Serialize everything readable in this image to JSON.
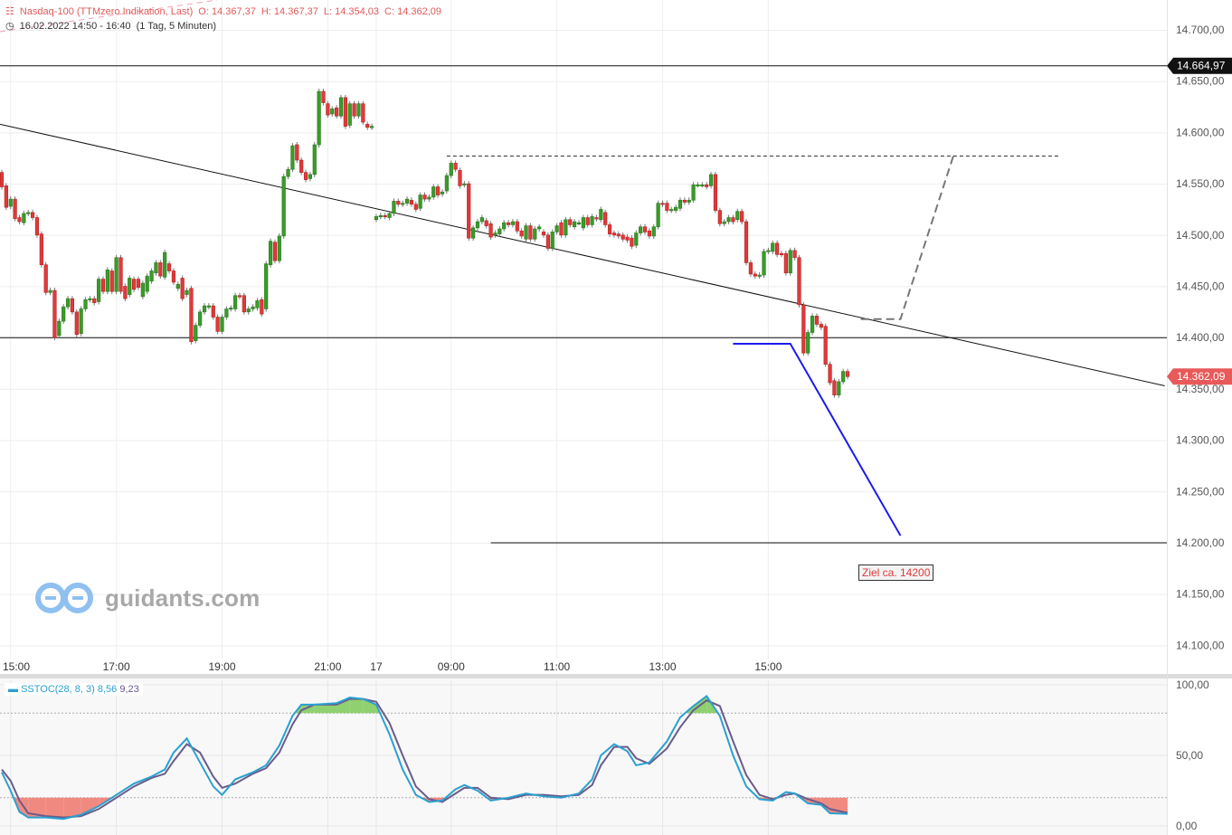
{
  "header": {
    "instrument": "Nasdaq-100 (TTMzero Indikation, Last)",
    "open": "O: 14.367,37",
    "high": "H: 14.367,37",
    "low": "L: 14.354,03",
    "close": "C: 14.362,09",
    "range": "16.02.2022 14:50 - 16:40",
    "interval": "(1 Tag, 5 Minuten)",
    "icons": {
      "instrument": "candlestick-icon",
      "time": "clock-icon"
    }
  },
  "logo": {
    "text": "guidants.com"
  },
  "colors": {
    "up": "#3a9b2a",
    "up_border": "#2b7a1e",
    "down": "#e03a3a",
    "down_border": "#b42020",
    "stoch_k": "#2aa0d0",
    "stoch_d": "#6b5b8a",
    "overbought_fill": "#8fd070",
    "oversold_fill": "#f08a80",
    "blue_projection": "#1a1aee",
    "grey_projection": "#777777"
  },
  "chart_data": [
    {
      "type": "candlestick",
      "ylim": [
        14080,
        14730
      ],
      "y_ticks": [
        14700,
        14650,
        14600,
        14550,
        14500,
        14450,
        14400,
        14350,
        14300,
        14250,
        14200,
        14150,
        14100
      ],
      "y_tick_labels": [
        "14.700,00",
        "14.650,00",
        "14.600,00",
        "14.550,00",
        "14.500,00",
        "14.450,00",
        "14.400,00",
        "14.350,00",
        "14.300,00",
        "14.250,00",
        "14.200,00",
        "14.150,00",
        "14.100,00"
      ],
      "x_ticks": [
        {
          "bar": 2,
          "label": "15:00"
        },
        {
          "bar": 26,
          "label": "17:00"
        },
        {
          "bar": 50,
          "label": "19:00"
        },
        {
          "bar": 74,
          "label": "21:00"
        },
        {
          "bar": 85,
          "label": "17"
        },
        {
          "bar": 102,
          "label": "09:00"
        },
        {
          "bar": 126,
          "label": "11:00"
        },
        {
          "bar": 150,
          "label": "13:00"
        },
        {
          "bar": 174,
          "label": "15:00"
        }
      ],
      "grid": true,
      "price_markers": [
        {
          "value": 14664.97,
          "label": "14.664,97",
          "color": "#111111"
        },
        {
          "value": 14362.09,
          "label": "14.362,09",
          "color": "#e85a5a"
        }
      ],
      "candles_open_close": [
        [
          14561,
          14547
        ],
        [
          14548,
          14527
        ],
        [
          14528,
          14535
        ],
        [
          14535,
          14516
        ],
        [
          14517,
          14513
        ],
        [
          14512,
          14521
        ],
        [
          14521,
          14522
        ],
        [
          14522,
          14517
        ],
        [
          14517,
          14500
        ],
        [
          14501,
          14471
        ],
        [
          14471,
          14444
        ],
        [
          14444,
          14446
        ],
        [
          14446,
          14400
        ],
        [
          14402,
          14416
        ],
        [
          14416,
          14430
        ],
        [
          14430,
          14438
        ],
        [
          14438,
          14425
        ],
        [
          14425,
          14403
        ],
        [
          14404,
          14428
        ],
        [
          14428,
          14437
        ],
        [
          14437,
          14438
        ],
        [
          14438,
          14434
        ],
        [
          14435,
          14457
        ],
        [
          14457,
          14445
        ],
        [
          14445,
          14466
        ],
        [
          14465,
          14445
        ],
        [
          14445,
          14478
        ],
        [
          14478,
          14445
        ],
        [
          14450,
          14438
        ],
        [
          14442,
          14458
        ],
        [
          14457,
          14447
        ],
        [
          14457,
          14449
        ],
        [
          14440,
          14453
        ],
        [
          14445,
          14460
        ],
        [
          14455,
          14465
        ],
        [
          14463,
          14473
        ],
        [
          14473,
          14460
        ],
        [
          14459,
          14483
        ],
        [
          14472,
          14465
        ],
        [
          14465,
          14454
        ],
        [
          14448,
          14452
        ],
        [
          14458,
          14438
        ],
        [
          14442,
          14446
        ],
        [
          14448,
          14396
        ],
        [
          14397,
          14412
        ],
        [
          14412,
          14425
        ],
        [
          14425,
          14431
        ],
        [
          14430,
          14431
        ],
        [
          14431,
          14420
        ],
        [
          14420,
          14406
        ],
        [
          14406,
          14420
        ],
        [
          14420,
          14428
        ],
        [
          14428,
          14429
        ],
        [
          14428,
          14441
        ],
        [
          14441,
          14440
        ],
        [
          14441,
          14425
        ],
        [
          14425,
          14428
        ],
        [
          14428,
          14430
        ],
        [
          14429,
          14436
        ],
        [
          14437,
          14423
        ],
        [
          14428,
          14472
        ],
        [
          14471,
          14494
        ],
        [
          14493,
          14475
        ],
        [
          14475,
          14499
        ],
        [
          14499,
          14557
        ],
        [
          14557,
          14564
        ],
        [
          14564,
          14587
        ],
        [
          14588,
          14573
        ],
        [
          14573,
          14561
        ],
        [
          14561,
          14554
        ],
        [
          14555,
          14559
        ],
        [
          14559,
          14588
        ],
        [
          14588,
          14640
        ],
        [
          14640,
          14629
        ],
        [
          14628,
          14617
        ],
        [
          14618,
          14623
        ],
        [
          14624,
          14616
        ],
        [
          14616,
          14634
        ],
        [
          14634,
          14606
        ],
        [
          14607,
          14628
        ],
        [
          14628,
          14616
        ],
        [
          14616,
          14628
        ],
        [
          14628,
          14610
        ],
        [
          14608,
          14605
        ],
        [
          14605,
          14606
        ],
        [
          14515,
          14518
        ],
        [
          14518,
          14519
        ],
        [
          14519,
          14518
        ],
        [
          14517,
          14521
        ],
        [
          14521,
          14533
        ],
        [
          14533,
          14530
        ],
        [
          14530,
          14531
        ],
        [
          14531,
          14535
        ],
        [
          14534,
          14530
        ],
        [
          14530,
          14525
        ],
        [
          14526,
          14539
        ],
        [
          14539,
          14535
        ],
        [
          14535,
          14537
        ],
        [
          14537,
          14547
        ],
        [
          14547,
          14539
        ],
        [
          14540,
          14542
        ],
        [
          14543,
          14558
        ],
        [
          14558,
          14570
        ],
        [
          14570,
          14564
        ],
        [
          14563,
          14548
        ],
        [
          14549,
          14550
        ],
        [
          14550,
          14497
        ],
        [
          14497,
          14507
        ],
        [
          14507,
          14513
        ],
        [
          14513,
          14517
        ],
        [
          14514,
          14509
        ],
        [
          14511,
          14498
        ],
        [
          14500,
          14502
        ],
        [
          14501,
          14506
        ],
        [
          14506,
          14512
        ],
        [
          14512,
          14510
        ],
        [
          14510,
          14513
        ],
        [
          14513,
          14504
        ],
        [
          14504,
          14499
        ],
        [
          14496,
          14509
        ],
        [
          14509,
          14496
        ],
        [
          14496,
          14506
        ],
        [
          14506,
          14508
        ],
        [
          14503,
          14500
        ],
        [
          14500,
          14487
        ],
        [
          14487,
          14503
        ],
        [
          14503,
          14509
        ],
        [
          14512,
          14500
        ],
        [
          14500,
          14515
        ],
        [
          14515,
          14510
        ],
        [
          14508,
          14513
        ],
        [
          14512,
          14512
        ],
        [
          14507,
          14517
        ],
        [
          14517,
          14510
        ],
        [
          14510,
          14518
        ],
        [
          14517,
          14516
        ],
        [
          14515,
          14525
        ],
        [
          14522,
          14510
        ],
        [
          14510,
          14501
        ],
        [
          14502,
          14500
        ],
        [
          14501,
          14499
        ],
        [
          14500,
          14496
        ],
        [
          14498,
          14495
        ],
        [
          14497,
          14489
        ],
        [
          14490,
          14502
        ],
        [
          14502,
          14508
        ],
        [
          14508,
          14503
        ],
        [
          14504,
          14499
        ],
        [
          14499,
          14508
        ],
        [
          14508,
          14531
        ],
        [
          14531,
          14530
        ],
        [
          14531,
          14524
        ],
        [
          14524,
          14525
        ],
        [
          14524,
          14527
        ],
        [
          14526,
          14534
        ],
        [
          14534,
          14532
        ],
        [
          14532,
          14534
        ],
        [
          14534,
          14549
        ],
        [
          14549,
          14549
        ],
        [
          14549,
          14549
        ],
        [
          14549,
          14547
        ],
        [
          14548,
          14559
        ],
        [
          14559,
          14524
        ],
        [
          14524,
          14511
        ],
        [
          14511,
          14513
        ],
        [
          14513,
          14517
        ],
        [
          14517,
          14513
        ],
        [
          14515,
          14523
        ],
        [
          14523,
          14513
        ],
        [
          14513,
          14473
        ],
        [
          14473,
          14462
        ],
        [
          14462,
          14460
        ],
        [
          14460,
          14461
        ],
        [
          14461,
          14484
        ],
        [
          14484,
          14485
        ],
        [
          14484,
          14492
        ],
        [
          14492,
          14481
        ],
        [
          14482,
          14481
        ],
        [
          14482,
          14463
        ],
        [
          14463,
          14485
        ],
        [
          14485,
          14478
        ],
        [
          14478,
          14432
        ],
        [
          14432,
          14385
        ],
        [
          14385,
          14405
        ],
        [
          14405,
          14421
        ],
        [
          14421,
          14413
        ],
        [
          14413,
          14410
        ],
        [
          14411,
          14374
        ],
        [
          14374,
          14356
        ],
        [
          14358,
          14344
        ],
        [
          14344,
          14357
        ],
        [
          14357,
          14367
        ],
        [
          14367,
          14362
        ]
      ],
      "drawings": {
        "horizontal_lines": [
          14664.97,
          14400
        ],
        "trendline": [
          [
            0,
            14608
          ],
          [
            264,
            14353
          ]
        ],
        "target_line": {
          "from_bar": 111,
          "value": 14200
        },
        "dashed_resistance": {
          "from_bar": 101,
          "to_bar": 240,
          "value": 14577
        },
        "grey_projection": [
          [
            195,
            14418
          ],
          [
            204,
            14418
          ],
          [
            216,
            14577
          ]
        ],
        "blue_projection": [
          [
            166,
            14394
          ],
          [
            179,
            14394
          ],
          [
            204,
            14207
          ]
        ],
        "target_label": {
          "text": "Ziel ca. 14200"
        }
      }
    },
    {
      "type": "line",
      "name": "SSTOC(28, 8, 3)",
      "last_k": "8,56",
      "last_d": "9,23",
      "ylim": [
        0,
        100
      ],
      "y_ticks": [
        100,
        50,
        0
      ],
      "y_tick_labels": [
        "100,00",
        "50,00",
        "0,00"
      ],
      "levels": [
        80,
        20
      ],
      "points_bar_k_d": [
        [
          0,
          38,
          40
        ],
        [
          2,
          25,
          32
        ],
        [
          4,
          10,
          18
        ],
        [
          6,
          6,
          9
        ],
        [
          10,
          6,
          7
        ],
        [
          14,
          5,
          6
        ],
        [
          18,
          8,
          7
        ],
        [
          22,
          14,
          12
        ],
        [
          26,
          22,
          20
        ],
        [
          30,
          30,
          28
        ],
        [
          34,
          35,
          34
        ],
        [
          37,
          40,
          37
        ],
        [
          39,
          52,
          46
        ],
        [
          42,
          62,
          58
        ],
        [
          45,
          45,
          52
        ],
        [
          48,
          28,
          35
        ],
        [
          50,
          22,
          27
        ],
        [
          53,
          33,
          30
        ],
        [
          57,
          38,
          37
        ],
        [
          60,
          43,
          41
        ],
        [
          63,
          57,
          52
        ],
        [
          66,
          78,
          72
        ],
        [
          68,
          86,
          82
        ],
        [
          71,
          86,
          86
        ],
        [
          76,
          87,
          86
        ],
        [
          79,
          91,
          90
        ],
        [
          82,
          90,
          90
        ],
        [
          85,
          86,
          88
        ],
        [
          88,
          65,
          73
        ],
        [
          91,
          40,
          50
        ],
        [
          94,
          22,
          28
        ],
        [
          97,
          17,
          19
        ],
        [
          100,
          18,
          17
        ],
        [
          103,
          26,
          23
        ],
        [
          105,
          29,
          27
        ],
        [
          108,
          25,
          27
        ],
        [
          111,
          18,
          20
        ],
        [
          115,
          20,
          19
        ],
        [
          119,
          23,
          22
        ],
        [
          123,
          21,
          22
        ],
        [
          127,
          20,
          21
        ],
        [
          131,
          23,
          22
        ],
        [
          134,
          33,
          29
        ],
        [
          136,
          50,
          43
        ],
        [
          139,
          58,
          56
        ],
        [
          142,
          53,
          56
        ],
        [
          144,
          43,
          48
        ],
        [
          147,
          45,
          44
        ],
        [
          151,
          60,
          55
        ],
        [
          154,
          77,
          70
        ],
        [
          157,
          85,
          82
        ],
        [
          160,
          92,
          89
        ],
        [
          163,
          78,
          85
        ],
        [
          166,
          50,
          60
        ],
        [
          169,
          28,
          36
        ],
        [
          172,
          19,
          22
        ],
        [
          175,
          18,
          19
        ],
        [
          178,
          24,
          22
        ],
        [
          180,
          23,
          23
        ],
        [
          183,
          16,
          19
        ],
        [
          186,
          15,
          16
        ],
        [
          188,
          9,
          12
        ],
        [
          192,
          8.56,
          9.23
        ]
      ]
    }
  ]
}
